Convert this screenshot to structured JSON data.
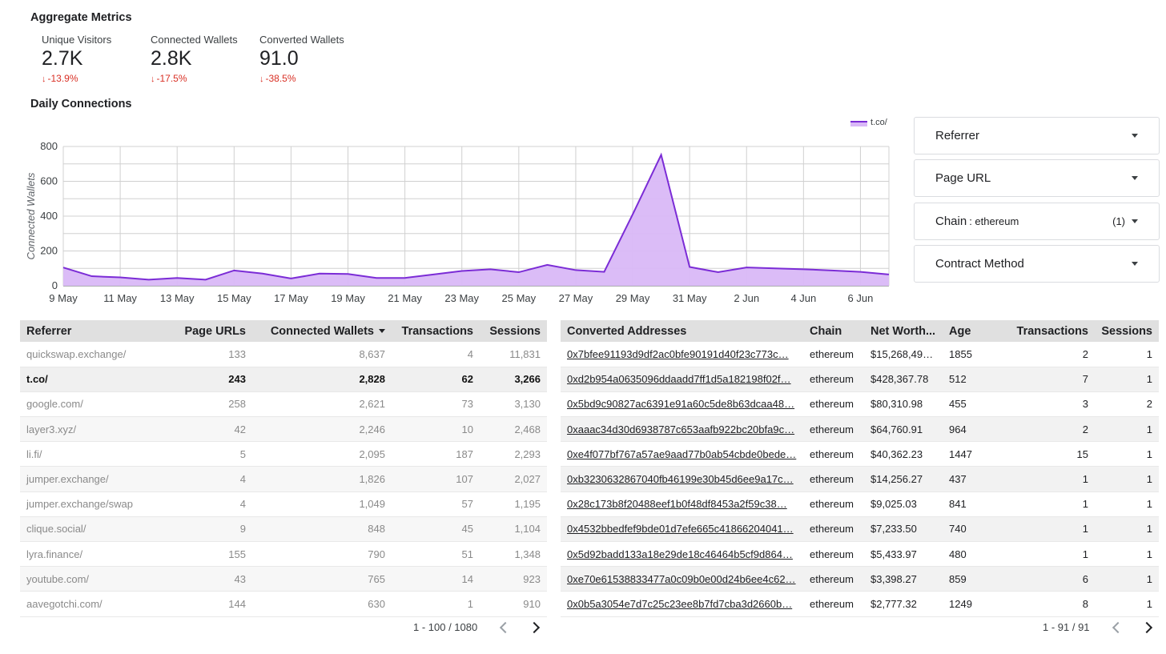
{
  "aggregate": {
    "title": "Aggregate Metrics",
    "cards": [
      {
        "label": "Unique Visitors",
        "value": "2.7K",
        "delta": "-13.9%"
      },
      {
        "label": "Connected Wallets",
        "value": "2.8K",
        "delta": "-17.5%"
      },
      {
        "label": "Converted Wallets",
        "value": "91.0",
        "delta": "-38.5%"
      }
    ],
    "delta_arrow": "↓"
  },
  "daily": {
    "title": "Daily Connections"
  },
  "chart_data": {
    "type": "area",
    "title": "Daily Connections",
    "xlabel": "",
    "ylabel": "Connected Wallets",
    "ylim": [
      0,
      800
    ],
    "yticks": [
      0,
      200,
      400,
      600,
      800
    ],
    "x": [
      "9 May",
      "10 May",
      "11 May",
      "12 May",
      "13 May",
      "14 May",
      "15 May",
      "16 May",
      "17 May",
      "18 May",
      "19 May",
      "20 May",
      "21 May",
      "22 May",
      "23 May",
      "24 May",
      "25 May",
      "26 May",
      "27 May",
      "28 May",
      "29 May",
      "30 May",
      "31 May",
      "1 Jun",
      "2 Jun",
      "3 Jun",
      "4 Jun",
      "5 Jun",
      "6 Jun",
      "7 Jun"
    ],
    "xtick_labels": [
      "9 May",
      "",
      "11 May",
      "",
      "13 May",
      "",
      "15 May",
      "",
      "17 May",
      "",
      "19 May",
      "",
      "21 May",
      "",
      "23 May",
      "",
      "25 May",
      "",
      "27 May",
      "",
      "29 May",
      "",
      "31 May",
      "",
      "2 Jun",
      "",
      "4 Jun",
      "",
      "6 Jun",
      ""
    ],
    "series": [
      {
        "name": "t.co/",
        "values": [
          105,
          55,
          48,
          35,
          45,
          35,
          88,
          70,
          42,
          70,
          68,
          45,
          45,
          65,
          85,
          95,
          78,
          120,
          90,
          80,
          410,
          752,
          108,
          78,
          105,
          100,
          95,
          88,
          80,
          65
        ],
        "color": "#7b2cd6",
        "fill": "#d9b8f7"
      }
    ],
    "legend_position": "top-right",
    "grid": true
  },
  "filters": [
    {
      "label": "Referrer",
      "value": "",
      "count": ""
    },
    {
      "label": "Page URL",
      "value": "",
      "count": ""
    },
    {
      "label": "Chain",
      "value": ": ethereum",
      "count": "(1)"
    },
    {
      "label": "Contract Method",
      "value": "",
      "count": ""
    }
  ],
  "referrer_table": {
    "headers": [
      "Referrer",
      "Page URLs",
      "Connected Wallets",
      "Transactions",
      "Sessions"
    ],
    "rows": [
      [
        "quickswap.exchange/",
        "133",
        "8,637",
        "4",
        "11,831"
      ],
      [
        "t.co/",
        "243",
        "2,828",
        "62",
        "3,266"
      ],
      [
        "google.com/",
        "258",
        "2,621",
        "73",
        "3,130"
      ],
      [
        "layer3.xyz/",
        "42",
        "2,246",
        "10",
        "2,468"
      ],
      [
        "li.fi/",
        "5",
        "2,095",
        "187",
        "2,293"
      ],
      [
        "jumper.exchange/",
        "4",
        "1,826",
        "107",
        "2,027"
      ],
      [
        "jumper.exchange/swap",
        "4",
        "1,049",
        "57",
        "1,195"
      ],
      [
        "clique.social/",
        "9",
        "848",
        "45",
        "1,104"
      ],
      [
        "lyra.finance/",
        "155",
        "790",
        "51",
        "1,348"
      ],
      [
        "youtube.com/",
        "43",
        "765",
        "14",
        "923"
      ],
      [
        "aavegotchi.com/",
        "144",
        "630",
        "1",
        "910"
      ]
    ],
    "pager": "1 - 100 / 1080"
  },
  "address_table": {
    "headers": [
      "Converted Addresses",
      "Chain",
      "Net Worth...",
      "Age",
      "Transactions",
      "Sessions"
    ],
    "rows": [
      [
        "0x7bfee91193d9df2ac0bfe90191d40f23c773c…",
        "ethereum",
        "$15,268,499…",
        "1855",
        "2",
        "1"
      ],
      [
        "0xd2b954a0635096ddaadd7ff1d5a182198f02f…",
        "ethereum",
        "$428,367.78",
        "512",
        "7",
        "1"
      ],
      [
        "0x5bd9c90827ac6391e91a60c5de8b63dcaa48…",
        "ethereum",
        "$80,310.98",
        "455",
        "3",
        "2"
      ],
      [
        "0xaaac34d30d6938787c653aafb922bc20bfa9c…",
        "ethereum",
        "$64,760.91",
        "964",
        "2",
        "1"
      ],
      [
        "0xe4f077bf767a57ae9aad77b0ab54cbde0bede…",
        "ethereum",
        "$40,362.23",
        "1447",
        "15",
        "1"
      ],
      [
        "0xb3230632867040fb46199e30b45d6ee9a17c…",
        "ethereum",
        "$14,256.27",
        "437",
        "1",
        "1"
      ],
      [
        "0x28c173b8f20488eef1b0f48df8453a2f59c38…",
        "ethereum",
        "$9,025.03",
        "841",
        "1",
        "1"
      ],
      [
        "0x4532bbedfef9bde01d7efe665c41866204041…",
        "ethereum",
        "$7,233.50",
        "740",
        "1",
        "1"
      ],
      [
        "0x5d92badd133a18e29de18c46464b5cf9d864…",
        "ethereum",
        "$5,433.97",
        "480",
        "1",
        "1"
      ],
      [
        "0xe70e61538833477a0c09b0e00d24b6ee4c62…",
        "ethereum",
        "$3,398.27",
        "859",
        "6",
        "1"
      ],
      [
        "0x0b5a3054e7d7c25c23ee8b7fd7cba3d2660b…",
        "ethereum",
        "$2,777.32",
        "1249",
        "8",
        "1"
      ]
    ],
    "pager": "1 - 91 / 91"
  }
}
